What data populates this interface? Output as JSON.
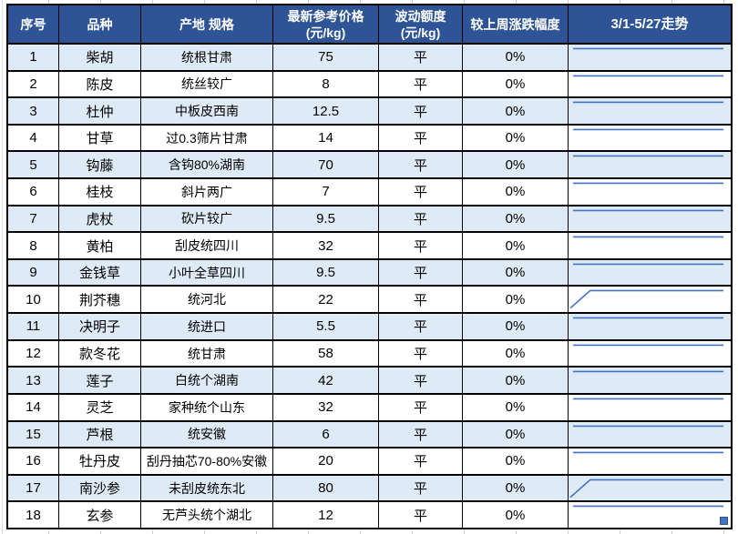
{
  "table": {
    "title_semantic": "中药材价格周报表",
    "header": {
      "columns": [
        {
          "label": "序号",
          "sub": ""
        },
        {
          "label": "品种",
          "sub": ""
        },
        {
          "label": "产地 规格",
          "sub": ""
        },
        {
          "label": "最新参考价格",
          "sub": "(元/kg)"
        },
        {
          "label": "波动额度",
          "sub": "(元/kg)"
        },
        {
          "label": "较上周涨跌幅度",
          "sub": ""
        },
        {
          "label": "3/1-5/27走势",
          "sub": ""
        }
      ]
    },
    "rows": [
      {
        "seq": "1",
        "variety": "柴胡",
        "origin_spec": "统根甘肃",
        "price": "75",
        "fluctuation": "平",
        "change": "0%",
        "trend": "flat"
      },
      {
        "seq": "2",
        "variety": "陈皮",
        "origin_spec": "统丝较广",
        "price": "8",
        "fluctuation": "平",
        "change": "0%",
        "trend": "flat"
      },
      {
        "seq": "3",
        "variety": "杜仲",
        "origin_spec": "中板皮西南",
        "price": "12.5",
        "fluctuation": "平",
        "change": "0%",
        "trend": "flat"
      },
      {
        "seq": "4",
        "variety": "甘草",
        "origin_spec": "过0.3筛片甘肃",
        "price": "14",
        "fluctuation": "平",
        "change": "0%",
        "trend": "flat"
      },
      {
        "seq": "5",
        "variety": "钩藤",
        "origin_spec": "含钩80%湖南",
        "price": "70",
        "fluctuation": "平",
        "change": "0%",
        "trend": "flat"
      },
      {
        "seq": "6",
        "variety": "桂枝",
        "origin_spec": "斜片两广",
        "price": "7",
        "fluctuation": "平",
        "change": "0%",
        "trend": "flat"
      },
      {
        "seq": "7",
        "variety": "虎杖",
        "origin_spec": "砍片较广",
        "price": "9.5",
        "fluctuation": "平",
        "change": "0%",
        "trend": "flat"
      },
      {
        "seq": "8",
        "variety": "黄柏",
        "origin_spec": "刮皮统四川",
        "price": "32",
        "fluctuation": "平",
        "change": "0%",
        "trend": "flat"
      },
      {
        "seq": "9",
        "variety": "金钱草",
        "origin_spec": "小叶全草四川",
        "price": "9.5",
        "fluctuation": "平",
        "change": "0%",
        "trend": "flat"
      },
      {
        "seq": "10",
        "variety": "荆芥穗",
        "origin_spec": "统河北",
        "price": "22",
        "fluctuation": "平",
        "change": "0%",
        "trend": "rise"
      },
      {
        "seq": "11",
        "variety": "决明子",
        "origin_spec": "统进口",
        "price": "5.5",
        "fluctuation": "平",
        "change": "0%",
        "trend": "flat"
      },
      {
        "seq": "12",
        "variety": "款冬花",
        "origin_spec": "统甘肃",
        "price": "58",
        "fluctuation": "平",
        "change": "0%",
        "trend": "flat"
      },
      {
        "seq": "13",
        "variety": "莲子",
        "origin_spec": "白统个湖南",
        "price": "42",
        "fluctuation": "平",
        "change": "0%",
        "trend": "flat"
      },
      {
        "seq": "14",
        "variety": "灵芝",
        "origin_spec": "家种统个山东",
        "price": "32",
        "fluctuation": "平",
        "change": "0%",
        "trend": "flat"
      },
      {
        "seq": "15",
        "variety": "芦根",
        "origin_spec": "统安徽",
        "price": "6",
        "fluctuation": "平",
        "change": "0%",
        "trend": "flat"
      },
      {
        "seq": "16",
        "variety": "牡丹皮",
        "origin_spec": "刮丹抽芯70-80%安徽",
        "price": "20",
        "fluctuation": "平",
        "change": "0%",
        "trend": "flat"
      },
      {
        "seq": "17",
        "variety": "南沙参",
        "origin_spec": "未刮皮统东北",
        "price": "80",
        "fluctuation": "平",
        "change": "0%",
        "trend": "rise"
      },
      {
        "seq": "18",
        "variety": "玄参",
        "origin_spec": "无芦头统个湖北",
        "price": "12",
        "fluctuation": "平",
        "change": "0%",
        "trend": "flat"
      }
    ]
  },
  "chart_data": {
    "type": "line",
    "note": "per-row sparklines, x-range 3/1 to 5/27",
    "series": [
      {
        "name": "荆芥穗",
        "shape": "rise-then-flat"
      },
      {
        "name": "南沙参",
        "shape": "rise-then-flat"
      },
      {
        "name": "all-other-rows",
        "shape": "flat"
      }
    ]
  },
  "colors": {
    "header_bg": "#2F5496",
    "header_text": "#FFFFFF",
    "row_alt_bg": "#DEEAF6",
    "row_bg": "#FFFFFF",
    "border": "#000000",
    "sparkline": "#4472C4",
    "gridline": "#CFCFCF"
  }
}
